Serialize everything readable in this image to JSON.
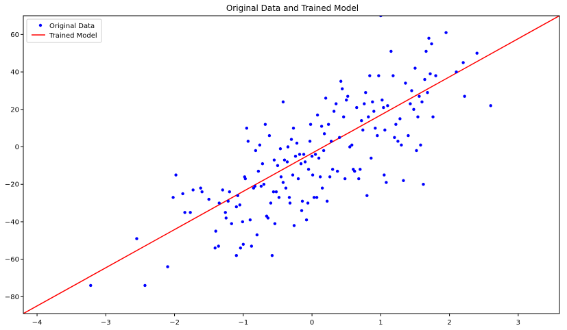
{
  "chart_data": {
    "type": "scatter",
    "title": "Original Data and Trained Model",
    "xlabel": "",
    "ylabel": "",
    "xlim": [
      -4.2,
      3.6
    ],
    "ylim": [
      -89,
      70
    ],
    "xticks": [
      -4,
      -3,
      -2,
      -1,
      0,
      1,
      2,
      3
    ],
    "yticks": [
      -80,
      -60,
      -40,
      -20,
      0,
      20,
      40,
      60
    ],
    "grid": false,
    "legend": "top-left",
    "series": [
      {
        "name": "Original Data",
        "kind": "scatter",
        "color": "#0000ff",
        "points": [
          [
            -3.22,
            -74
          ],
          [
            -2.55,
            -49
          ],
          [
            -2.43,
            -74
          ],
          [
            -2.1,
            -64
          ],
          [
            -2.02,
            -27
          ],
          [
            -1.98,
            -15
          ],
          [
            -1.88,
            -25
          ],
          [
            -1.85,
            -35
          ],
          [
            -1.77,
            -35
          ],
          [
            -1.73,
            -23
          ],
          [
            -1.62,
            -22
          ],
          [
            -1.6,
            -24
          ],
          [
            -1.5,
            -28
          ],
          [
            -1.41,
            -54
          ],
          [
            -1.4,
            -45
          ],
          [
            -1.36,
            -53
          ],
          [
            -1.35,
            -30
          ],
          [
            -1.3,
            -23
          ],
          [
            -1.26,
            -35
          ],
          [
            -1.25,
            -38
          ],
          [
            -1.22,
            -29
          ],
          [
            -1.2,
            -24
          ],
          [
            -1.17,
            -41
          ],
          [
            -1.1,
            -58
          ],
          [
            -1.1,
            -32
          ],
          [
            -1.08,
            -26
          ],
          [
            -1.05,
            -31
          ],
          [
            -1.04,
            -54
          ],
          [
            -1.01,
            -40
          ],
          [
            -1.0,
            -52
          ],
          [
            -0.98,
            -16
          ],
          [
            -0.97,
            -17
          ],
          [
            -0.95,
            10
          ],
          [
            -0.93,
            3
          ],
          [
            -0.9,
            -39
          ],
          [
            -0.88,
            -53
          ],
          [
            -0.85,
            -22
          ],
          [
            -0.83,
            -21
          ],
          [
            -0.82,
            -2
          ],
          [
            -0.8,
            -47
          ],
          [
            -0.78,
            -13
          ],
          [
            -0.76,
            1
          ],
          [
            -0.74,
            -21
          ],
          [
            -0.72,
            -9
          ],
          [
            -0.7,
            -20
          ],
          [
            -0.68,
            12
          ],
          [
            -0.66,
            -37
          ],
          [
            -0.64,
            -38
          ],
          [
            -0.62,
            6
          ],
          [
            -0.6,
            -30
          ],
          [
            -0.58,
            -58
          ],
          [
            -0.56,
            -24
          ],
          [
            -0.55,
            -7
          ],
          [
            -0.54,
            -41
          ],
          [
            -0.52,
            -24
          ],
          [
            -0.5,
            -10
          ],
          [
            -0.48,
            -27
          ],
          [
            -0.46,
            -1
          ],
          [
            -0.45,
            -16
          ],
          [
            -0.42,
            -19
          ],
          [
            -0.42,
            24
          ],
          [
            -0.4,
            -7
          ],
          [
            -0.38,
            -22
          ],
          [
            -0.36,
            -8
          ],
          [
            -0.35,
            0
          ],
          [
            -0.33,
            -27
          ],
          [
            -0.32,
            -30
          ],
          [
            -0.3,
            4
          ],
          [
            -0.28,
            -15
          ],
          [
            -0.27,
            10
          ],
          [
            -0.26,
            -42
          ],
          [
            -0.24,
            -5
          ],
          [
            -0.22,
            2
          ],
          [
            -0.2,
            -17
          ],
          [
            -0.18,
            -4
          ],
          [
            -0.16,
            -9
          ],
          [
            -0.15,
            -34
          ],
          [
            -0.14,
            -29
          ],
          [
            -0.12,
            -4
          ],
          [
            -0.1,
            -8
          ],
          [
            -0.08,
            -39
          ],
          [
            -0.06,
            -30
          ],
          [
            -0.05,
            -12
          ],
          [
            -0.03,
            3
          ],
          [
            -0.02,
            12
          ],
          [
            0.0,
            -5
          ],
          [
            0.01,
            -15
          ],
          [
            0.03,
            -27
          ],
          [
            0.05,
            -4
          ],
          [
            0.07,
            -27
          ],
          [
            0.08,
            17
          ],
          [
            0.1,
            -6
          ],
          [
            0.12,
            -16
          ],
          [
            0.14,
            11
          ],
          [
            0.15,
            -22
          ],
          [
            0.17,
            -2
          ],
          [
            0.18,
            7
          ],
          [
            0.2,
            26
          ],
          [
            0.22,
            -29
          ],
          [
            0.24,
            12
          ],
          [
            0.26,
            -16
          ],
          [
            0.28,
            3
          ],
          [
            0.3,
            -12
          ],
          [
            0.32,
            19
          ],
          [
            0.35,
            23
          ],
          [
            0.37,
            -13
          ],
          [
            0.4,
            5
          ],
          [
            0.42,
            35
          ],
          [
            0.44,
            31
          ],
          [
            0.46,
            16
          ],
          [
            0.48,
            -17
          ],
          [
            0.5,
            25
          ],
          [
            0.52,
            27
          ],
          [
            0.55,
            0
          ],
          [
            0.58,
            1
          ],
          [
            0.6,
            -12
          ],
          [
            0.62,
            -13
          ],
          [
            0.65,
            21
          ],
          [
            0.68,
            -17
          ],
          [
            0.7,
            -12
          ],
          [
            0.72,
            14
          ],
          [
            0.74,
            9
          ],
          [
            0.76,
            23
          ],
          [
            0.78,
            29
          ],
          [
            0.8,
            -26
          ],
          [
            0.82,
            16
          ],
          [
            0.84,
            38
          ],
          [
            0.86,
            -6
          ],
          [
            0.88,
            24
          ],
          [
            0.9,
            19
          ],
          [
            0.92,
            10
          ],
          [
            0.95,
            6
          ],
          [
            0.97,
            38
          ],
          [
            1.0,
            70
          ],
          [
            1.02,
            25
          ],
          [
            1.04,
            21
          ],
          [
            1.05,
            -15
          ],
          [
            1.06,
            9
          ],
          [
            1.08,
            -19
          ],
          [
            1.1,
            22
          ],
          [
            1.15,
            51
          ],
          [
            1.18,
            38
          ],
          [
            1.2,
            5
          ],
          [
            1.22,
            12
          ],
          [
            1.25,
            3
          ],
          [
            1.28,
            15
          ],
          [
            1.3,
            1
          ],
          [
            1.33,
            -18
          ],
          [
            1.36,
            34
          ],
          [
            1.4,
            6
          ],
          [
            1.43,
            23
          ],
          [
            1.45,
            30
          ],
          [
            1.48,
            20
          ],
          [
            1.5,
            42
          ],
          [
            1.52,
            -2
          ],
          [
            1.54,
            16
          ],
          [
            1.56,
            27
          ],
          [
            1.58,
            1
          ],
          [
            1.6,
            24
          ],
          [
            1.62,
            -20
          ],
          [
            1.64,
            36
          ],
          [
            1.66,
            51
          ],
          [
            1.68,
            29
          ],
          [
            1.7,
            58
          ],
          [
            1.72,
            39
          ],
          [
            1.74,
            55
          ],
          [
            1.76,
            16
          ],
          [
            1.8,
            38
          ],
          [
            1.95,
            61
          ],
          [
            2.1,
            40
          ],
          [
            2.2,
            45
          ],
          [
            2.22,
            27
          ],
          [
            2.4,
            50
          ],
          [
            2.6,
            22
          ]
        ]
      },
      {
        "name": "Trained Model",
        "kind": "line",
        "color": "#ff0000",
        "x": [
          -4.2,
          3.6
        ],
        "y": [
          -89,
          70
        ]
      }
    ]
  }
}
